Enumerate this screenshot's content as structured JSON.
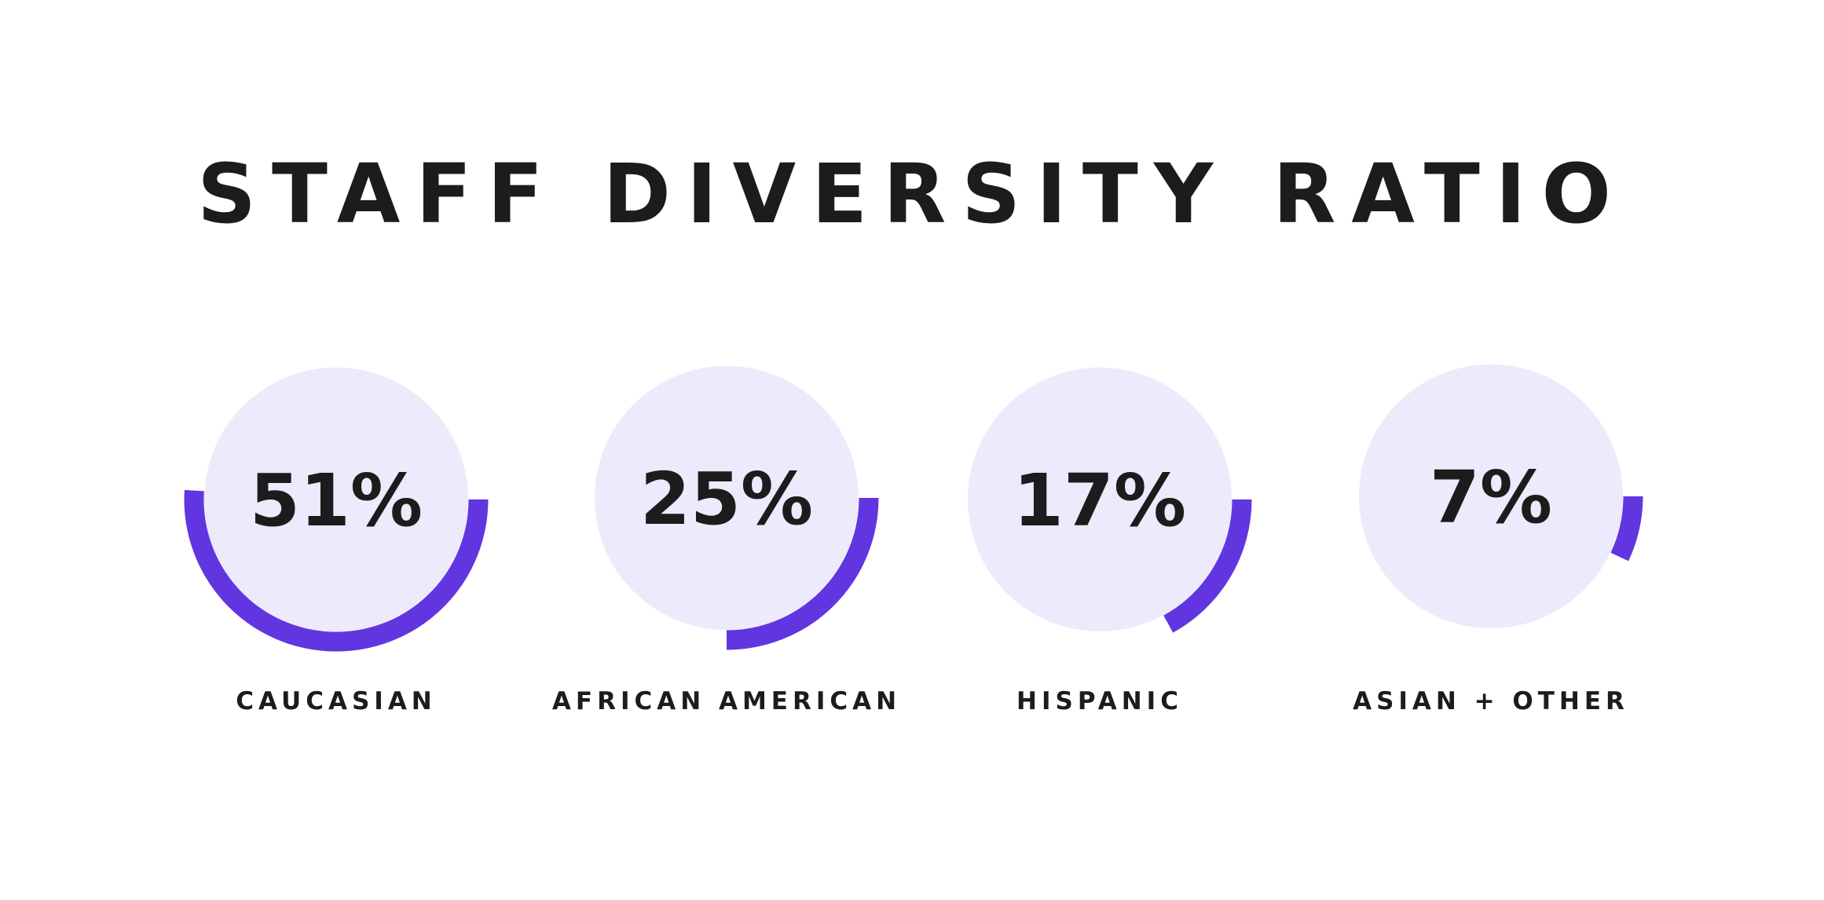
{
  "title": "STAFF DIVERSITY RATIO",
  "colors": {
    "accent": "#6136e1",
    "circle_fill": "#eceafb",
    "text": "#1c1c1c",
    "background": "#ffffff"
  },
  "chart_data": {
    "type": "pie",
    "title": "STAFF DIVERSITY RATIO",
    "categories": [
      "CAUCASIAN",
      "AFRICAN AMERICAN",
      "HISPANIC",
      "ASIAN + OTHER"
    ],
    "values": [
      51,
      25,
      17,
      7
    ],
    "value_labels": [
      "51%",
      "25%",
      "17%",
      "7%"
    ],
    "unit": "%"
  }
}
